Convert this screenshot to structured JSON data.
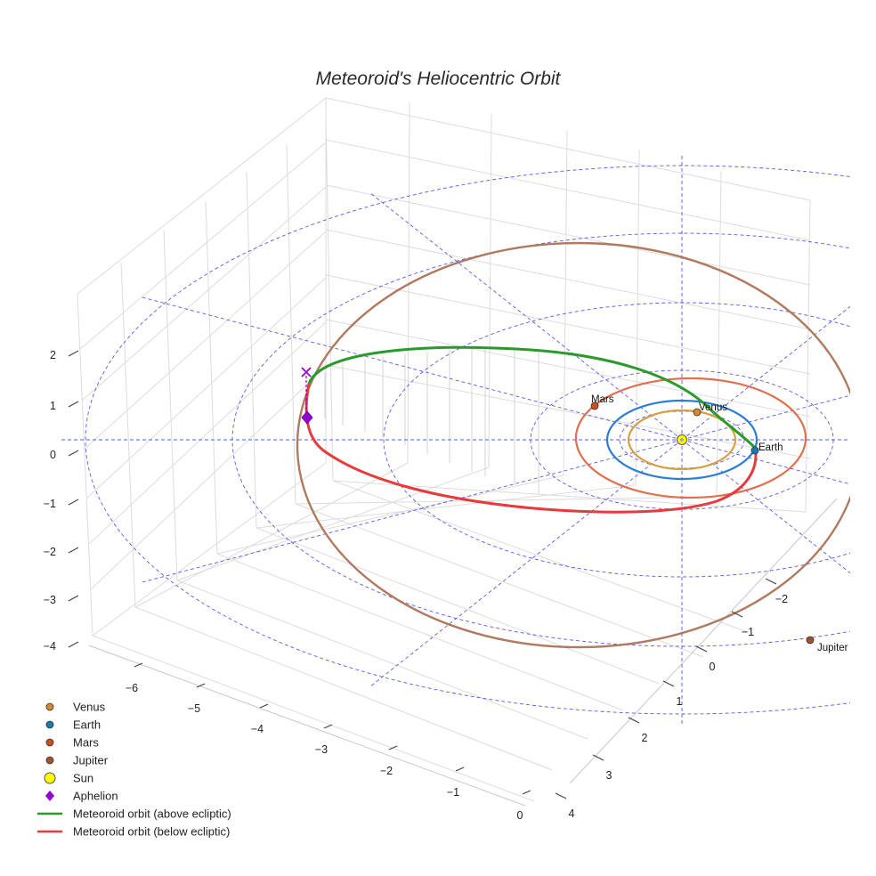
{
  "chart_data": {
    "type": "scatter3d",
    "title": "Meteoroid's Heliocentric Orbit",
    "axes": {
      "x": {
        "ticks": [
          "−6",
          "−5",
          "−4",
          "−3",
          "−2",
          "−1",
          "0"
        ]
      },
      "y": {
        "ticks": [
          "−2",
          "−1",
          "0",
          "1",
          "2",
          "3",
          "4"
        ]
      },
      "z": {
        "ticks": [
          "2",
          "1",
          "0",
          "−1",
          "−2",
          "−3",
          "−4"
        ]
      }
    },
    "polar_grid": {
      "color": "#5a5ae6",
      "rings": 5,
      "spokes": 12
    },
    "planets": [
      {
        "name": "Venus",
        "color": "#d4882a",
        "orbit_color": "#d4a040",
        "label": "Venus"
      },
      {
        "name": "Earth",
        "color": "#1f77b4",
        "orbit_color": "#2a7fd4",
        "label": "Earth"
      },
      {
        "name": "Mars",
        "color": "#c8501e",
        "orbit_color": "#e07050",
        "label": "Mars"
      },
      {
        "name": "Jupiter",
        "color": "#a0522d",
        "orbit_color": "#b07a60",
        "label": "Jupiter"
      }
    ],
    "sun": {
      "name": "Sun",
      "color": "#ffff00"
    },
    "aphelion": {
      "name": "Aphelion",
      "color": "#9400d3"
    },
    "series": [
      {
        "name": "Meteoroid orbit (above ecliptic)",
        "color": "#2a9a2a"
      },
      {
        "name": "Meteoroid orbit (below ecliptic)",
        "color": "#e83a3a"
      }
    ],
    "legend": {
      "position": "bottom-left",
      "entries": [
        "Venus",
        "Earth",
        "Mars",
        "Jupiter",
        "Sun",
        "Aphelion",
        "Meteoroid orbit (above ecliptic)",
        "Meteoroid orbit (below ecliptic)"
      ]
    }
  }
}
